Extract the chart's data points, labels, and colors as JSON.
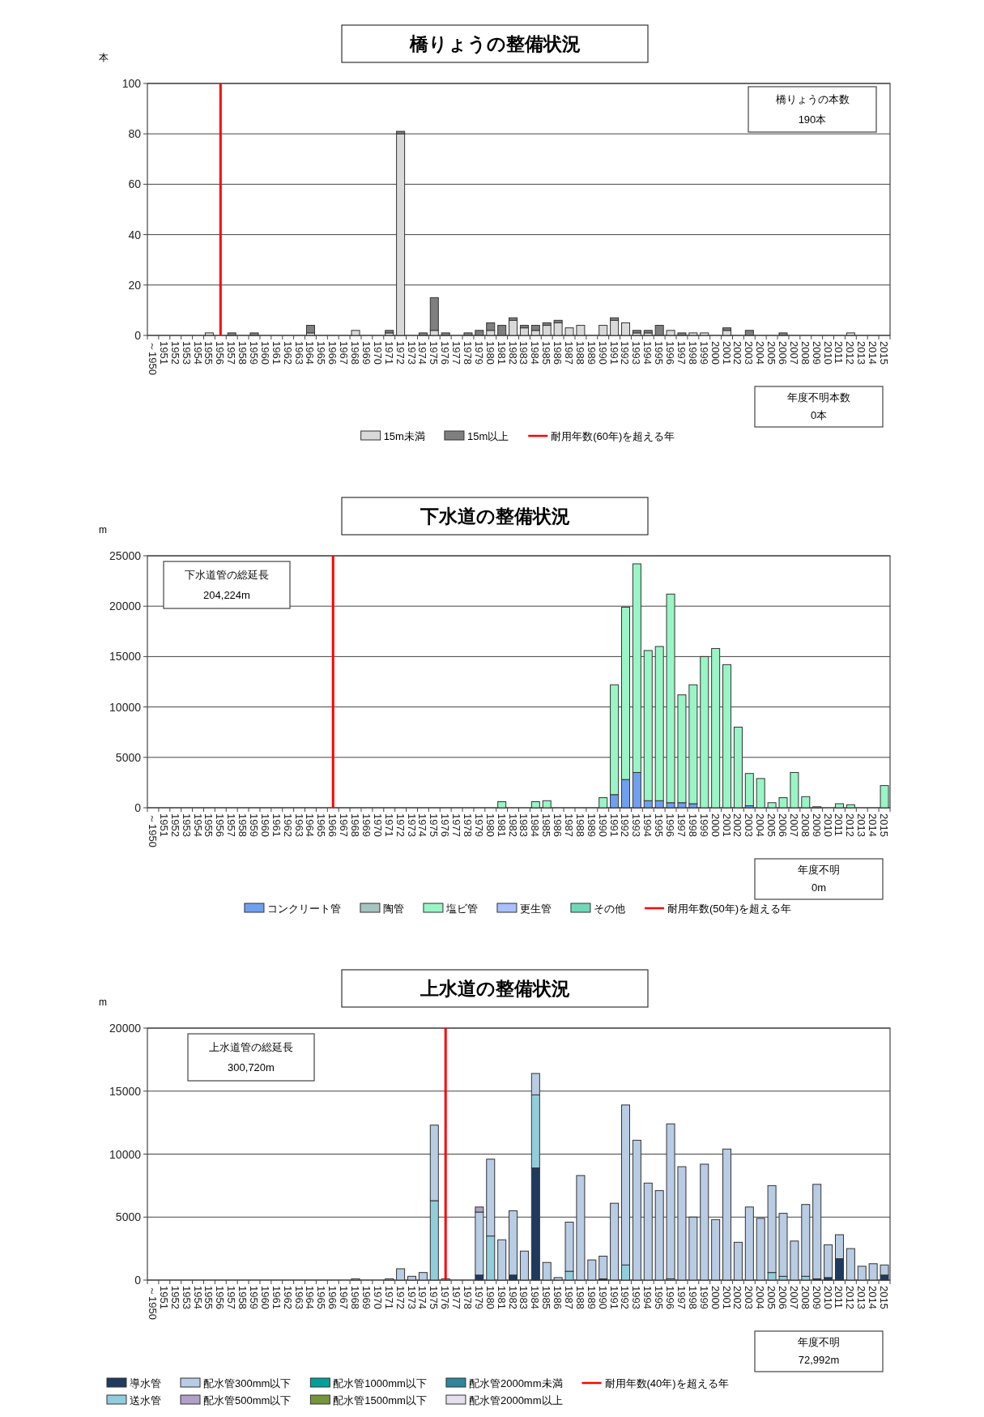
{
  "chart_data": [
    {
      "type": "bar",
      "stacked": true,
      "title": "橋りょうの整備状況",
      "ylabel": "本",
      "categories": [
        "～1950",
        "1951",
        "1952",
        "1953",
        "1954",
        "1955",
        "1956",
        "1957",
        "1958",
        "1959",
        "1960",
        "1961",
        "1962",
        "1963",
        "1964",
        "1965",
        "1966",
        "1967",
        "1968",
        "1969",
        "1970",
        "1971",
        "1972",
        "1973",
        "1974",
        "1975",
        "1976",
        "1977",
        "1978",
        "1979",
        "1980",
        "1981",
        "1982",
        "1983",
        "1984",
        "1985",
        "1986",
        "1987",
        "1988",
        "1989",
        "1990",
        "1991",
        "1992",
        "1993",
        "1994",
        "1995",
        "1996",
        "1997",
        "1998",
        "1999",
        "2000",
        "2001",
        "2002",
        "2003",
        "2004",
        "2005",
        "2006",
        "2007",
        "2008",
        "2009",
        "2010",
        "2011",
        "2012",
        "2013",
        "2014",
        "2015"
      ],
      "series": [
        {
          "name": "15m未満",
          "color": "#d9d9d9",
          "values": [
            0,
            0,
            0,
            0,
            0,
            1,
            0,
            0,
            0,
            0,
            0,
            0,
            0,
            0,
            1,
            0,
            0,
            0,
            2,
            0,
            0,
            1,
            80,
            0,
            0,
            2,
            0,
            0,
            0,
            0,
            2,
            0,
            6,
            3,
            2,
            4,
            5,
            3,
            4,
            0,
            4,
            6,
            5,
            1,
            1,
            0,
            2,
            0,
            1,
            1,
            0,
            2,
            0,
            0,
            0,
            0,
            0,
            0,
            0,
            0,
            0,
            0,
            1,
            0,
            0,
            0
          ]
        },
        {
          "name": "15m以上",
          "color": "#7f7f7f",
          "values": [
            0,
            0,
            0,
            0,
            0,
            0,
            0,
            1,
            0,
            1,
            0,
            0,
            0,
            0,
            3,
            0,
            0,
            0,
            0,
            0,
            0,
            1,
            1,
            0,
            1,
            13,
            1,
            0,
            1,
            2,
            3,
            4,
            1,
            1,
            2,
            1,
            1,
            0,
            0,
            0,
            0,
            1,
            0,
            1,
            1,
            4,
            0,
            1,
            0,
            0,
            0,
            1,
            0,
            2,
            0,
            0,
            1,
            0,
            0,
            0,
            0,
            0,
            0,
            0,
            0,
            0
          ]
        }
      ],
      "ylim": [
        0,
        100
      ],
      "yticks": [
        0,
        20,
        40,
        60,
        80,
        100
      ],
      "grid": "y",
      "legend": "bottom",
      "ref_lines": [
        {
          "axis": "x",
          "value": "1956",
          "label": "耐用年数(60年)を超える年",
          "color": "#ff0000"
        }
      ],
      "annotations": [
        "橋りょうの本数",
        "190本",
        "年度不明本数",
        "0本"
      ]
    },
    {
      "type": "bar",
      "stacked": true,
      "title": "下水道の整備状況",
      "ylabel": "m",
      "categories": [
        "～1950",
        "1951",
        "1952",
        "1953",
        "1954",
        "1955",
        "1956",
        "1957",
        "1958",
        "1959",
        "1960",
        "1961",
        "1962",
        "1963",
        "1964",
        "1965",
        "1966",
        "1967",
        "1968",
        "1969",
        "1970",
        "1971",
        "1972",
        "1973",
        "1974",
        "1975",
        "1976",
        "1977",
        "1978",
        "1979",
        "1980",
        "1981",
        "1982",
        "1983",
        "1984",
        "1985",
        "1986",
        "1987",
        "1988",
        "1989",
        "1990",
        "1991",
        "1992",
        "1993",
        "1994",
        "1995",
        "1996",
        "1997",
        "1998",
        "1999",
        "2000",
        "2001",
        "2002",
        "2003",
        "2004",
        "2005",
        "2006",
        "2007",
        "2008",
        "2009",
        "2010",
        "2011",
        "2012",
        "2013",
        "2014",
        "2015"
      ],
      "series": [
        {
          "name": "コンクリート管",
          "color": "#6fa0f0",
          "values": [
            0,
            0,
            0,
            0,
            0,
            0,
            0,
            0,
            0,
            0,
            0,
            0,
            0,
            0,
            0,
            0,
            0,
            0,
            0,
            0,
            0,
            0,
            0,
            0,
            0,
            0,
            0,
            0,
            0,
            0,
            0,
            0,
            0,
            0,
            0,
            0,
            0,
            0,
            0,
            0,
            0,
            1300,
            2800,
            3500,
            700,
            700,
            500,
            500,
            400,
            0,
            0,
            0,
            0,
            200,
            0,
            0,
            0,
            0,
            0,
            0,
            0,
            0,
            0,
            0,
            0,
            0
          ]
        },
        {
          "name": "陶管",
          "color": "#a8c4c0",
          "values": [
            0,
            0,
            0,
            0,
            0,
            0,
            0,
            0,
            0,
            0,
            0,
            0,
            0,
            0,
            0,
            0,
            0,
            0,
            0,
            0,
            0,
            0,
            0,
            0,
            0,
            0,
            0,
            0,
            0,
            0,
            0,
            0,
            0,
            0,
            0,
            0,
            0,
            0,
            0,
            0,
            0,
            0,
            0,
            0,
            0,
            0,
            0,
            0,
            0,
            0,
            0,
            0,
            0,
            0,
            0,
            0,
            0,
            0,
            0,
            0,
            0,
            0,
            0,
            0,
            0,
            0
          ]
        },
        {
          "name": "塩ビ管",
          "color": "#99f5c5",
          "values": [
            0,
            0,
            0,
            0,
            0,
            0,
            0,
            0,
            0,
            0,
            0,
            0,
            0,
            0,
            0,
            0,
            0,
            0,
            0,
            0,
            0,
            0,
            0,
            0,
            0,
            0,
            0,
            0,
            0,
            0,
            0,
            600,
            0,
            0,
            600,
            700,
            0,
            0,
            0,
            0,
            1000,
            10900,
            17100,
            20700,
            14900,
            15300,
            20700,
            10700,
            11800,
            15000,
            15800,
            14200,
            8000,
            3200,
            2900,
            500,
            1000,
            3500,
            1100,
            100,
            0,
            400,
            300,
            0,
            0,
            2200
          ]
        },
        {
          "name": "更生管",
          "color": "#a9c0ff",
          "values": [
            0,
            0,
            0,
            0,
            0,
            0,
            0,
            0,
            0,
            0,
            0,
            0,
            0,
            0,
            0,
            0,
            0,
            0,
            0,
            0,
            0,
            0,
            0,
            0,
            0,
            0,
            0,
            0,
            0,
            0,
            0,
            0,
            0,
            0,
            0,
            0,
            0,
            0,
            0,
            0,
            0,
            0,
            0,
            0,
            0,
            0,
            0,
            0,
            0,
            0,
            0,
            0,
            0,
            0,
            0,
            0,
            0,
            0,
            0,
            0,
            0,
            0,
            0,
            0,
            0,
            0
          ]
        },
        {
          "name": "その他",
          "color": "#70d8b8",
          "values": [
            0,
            0,
            0,
            0,
            0,
            0,
            0,
            0,
            0,
            0,
            0,
            0,
            0,
            0,
            0,
            0,
            0,
            0,
            0,
            0,
            0,
            0,
            0,
            0,
            0,
            0,
            0,
            0,
            0,
            0,
            0,
            0,
            0,
            0,
            0,
            0,
            0,
            0,
            0,
            0,
            0,
            0,
            0,
            0,
            0,
            0,
            0,
            0,
            0,
            0,
            0,
            0,
            0,
            0,
            0,
            0,
            0,
            0,
            0,
            0,
            0,
            0,
            0,
            0,
            0,
            0
          ]
        }
      ],
      "ylim": [
        0,
        25000
      ],
      "yticks": [
        0,
        5000,
        10000,
        15000,
        20000,
        25000
      ],
      "grid": "y",
      "legend": "bottom",
      "ref_lines": [
        {
          "axis": "x",
          "value": "1966",
          "label": "耐用年数(50年)を超える年",
          "color": "#ff0000"
        }
      ],
      "annotations": [
        "下水道管の総延長",
        "204,224m",
        "年度不明",
        "0m"
      ]
    },
    {
      "type": "bar",
      "stacked": true,
      "title": "上水道の整備状況",
      "ylabel": "m",
      "categories": [
        "～1950",
        "1951",
        "1952",
        "1953",
        "1954",
        "1955",
        "1956",
        "1957",
        "1958",
        "1959",
        "1960",
        "1961",
        "1962",
        "1963",
        "1964",
        "1965",
        "1966",
        "1967",
        "1968",
        "1969",
        "1970",
        "1971",
        "1972",
        "1973",
        "1974",
        "1975",
        "1976",
        "1977",
        "1978",
        "1979",
        "1980",
        "1981",
        "1982",
        "1983",
        "1984",
        "1985",
        "1986",
        "1987",
        "1988",
        "1989",
        "1990",
        "1991",
        "1992",
        "1993",
        "1994",
        "1995",
        "1996",
        "1997",
        "1998",
        "1999",
        "2000",
        "2001",
        "2002",
        "2003",
        "2004",
        "2005",
        "2006",
        "2007",
        "2008",
        "2009",
        "2010",
        "2011",
        "2012",
        "2013",
        "2014",
        "2015"
      ],
      "series": [
        {
          "name": "導水管",
          "color": "#1f3a5f",
          "values": [
            0,
            0,
            0,
            0,
            0,
            0,
            0,
            0,
            0,
            0,
            0,
            0,
            0,
            0,
            0,
            0,
            0,
            0,
            0,
            0,
            0,
            0,
            0,
            0,
            0,
            0,
            0,
            0,
            0,
            400,
            0,
            0,
            400,
            0,
            8900,
            0,
            0,
            0,
            0,
            0,
            100,
            0,
            0,
            0,
            0,
            0,
            0,
            0,
            0,
            0,
            0,
            0,
            0,
            0,
            0,
            0,
            0,
            0,
            0,
            100,
            200,
            1700,
            0,
            0,
            0,
            400
          ]
        },
        {
          "name": "送水管",
          "color": "#92cddc",
          "values": [
            0,
            0,
            0,
            0,
            0,
            0,
            0,
            0,
            0,
            0,
            0,
            0,
            0,
            0,
            0,
            0,
            0,
            0,
            0,
            0,
            0,
            0,
            0,
            0,
            0,
            6300,
            0,
            0,
            0,
            0,
            3500,
            0,
            0,
            0,
            5800,
            0,
            0,
            700,
            0,
            0,
            0,
            0,
            1200,
            0,
            0,
            0,
            100,
            0,
            0,
            0,
            0,
            0,
            0,
            0,
            0,
            600,
            300,
            0,
            300,
            0,
            0,
            0,
            0,
            0,
            0,
            0
          ]
        },
        {
          "name": "配水管300mm以下",
          "color": "#b8cce4",
          "values": [
            0,
            0,
            0,
            0,
            0,
            0,
            0,
            0,
            0,
            0,
            0,
            0,
            0,
            0,
            0,
            0,
            0,
            0,
            100,
            0,
            0,
            100,
            900,
            300,
            600,
            6000,
            100,
            0,
            0,
            5000,
            6100,
            3200,
            5100,
            2300,
            1700,
            1400,
            200,
            3900,
            8300,
            1600,
            1800,
            6100,
            12700,
            11100,
            7700,
            7100,
            12300,
            9000,
            5000,
            9200,
            4800,
            10400,
            3000,
            5800,
            4900,
            6900,
            5000,
            3100,
            5700,
            7500,
            2600,
            1900,
            2500,
            1100,
            1300,
            800
          ]
        },
        {
          "name": "配水管500mm以下",
          "color": "#b1a0c7",
          "values": [
            0,
            0,
            0,
            0,
            0,
            0,
            0,
            0,
            0,
            0,
            0,
            0,
            0,
            0,
            0,
            0,
            0,
            0,
            0,
            0,
            0,
            0,
            0,
            0,
            0,
            0,
            0,
            0,
            0,
            400,
            0,
            0,
            0,
            0,
            0,
            0,
            0,
            0,
            0,
            0,
            0,
            0,
            0,
            0,
            0,
            0,
            0,
            0,
            0,
            0,
            0,
            0,
            0,
            0,
            0,
            0,
            0,
            0,
            0,
            0,
            0,
            0,
            0,
            0,
            0,
            0
          ]
        },
        {
          "name": "配水管1000mm以下",
          "color": "#00a09a",
          "values": [
            0,
            0,
            0,
            0,
            0,
            0,
            0,
            0,
            0,
            0,
            0,
            0,
            0,
            0,
            0,
            0,
            0,
            0,
            0,
            0,
            0,
            0,
            0,
            0,
            0,
            0,
            0,
            0,
            0,
            0,
            0,
            0,
            0,
            0,
            0,
            0,
            0,
            0,
            0,
            0,
            0,
            0,
            0,
            0,
            0,
            0,
            0,
            0,
            0,
            0,
            0,
            0,
            0,
            0,
            0,
            0,
            0,
            0,
            0,
            0,
            0,
            0,
            0,
            0,
            0,
            0
          ]
        },
        {
          "name": "配水管1500mm以下",
          "color": "#77933c",
          "values": [
            0,
            0,
            0,
            0,
            0,
            0,
            0,
            0,
            0,
            0,
            0,
            0,
            0,
            0,
            0,
            0,
            0,
            0,
            0,
            0,
            0,
            0,
            0,
            0,
            0,
            0,
            0,
            0,
            0,
            0,
            0,
            0,
            0,
            0,
            0,
            0,
            0,
            0,
            0,
            0,
            0,
            0,
            0,
            0,
            0,
            0,
            0,
            0,
            0,
            0,
            0,
            0,
            0,
            0,
            0,
            0,
            0,
            0,
            0,
            0,
            0,
            0,
            0,
            0,
            0,
            0
          ]
        },
        {
          "name": "配水管2000mm未満",
          "color": "#31859c",
          "values": [
            0,
            0,
            0,
            0,
            0,
            0,
            0,
            0,
            0,
            0,
            0,
            0,
            0,
            0,
            0,
            0,
            0,
            0,
            0,
            0,
            0,
            0,
            0,
            0,
            0,
            0,
            0,
            0,
            0,
            0,
            0,
            0,
            0,
            0,
            0,
            0,
            0,
            0,
            0,
            0,
            0,
            0,
            0,
            0,
            0,
            0,
            0,
            0,
            0,
            0,
            0,
            0,
            0,
            0,
            0,
            0,
            0,
            0,
            0,
            0,
            0,
            0,
            0,
            0,
            0,
            0
          ]
        },
        {
          "name": "配水管2000mm以上",
          "color": "#e4dfec",
          "values": [
            0,
            0,
            0,
            0,
            0,
            0,
            0,
            0,
            0,
            0,
            0,
            0,
            0,
            0,
            0,
            0,
            0,
            0,
            0,
            0,
            0,
            0,
            0,
            0,
            0,
            0,
            0,
            0,
            0,
            0,
            0,
            0,
            0,
            0,
            0,
            0,
            0,
            0,
            0,
            0,
            0,
            0,
            0,
            0,
            0,
            0,
            0,
            0,
            0,
            0,
            0,
            0,
            0,
            0,
            0,
            0,
            0,
            0,
            0,
            0,
            0,
            0,
            0,
            0,
            0,
            0
          ]
        }
      ],
      "ylim": [
        0,
        20000
      ],
      "yticks": [
        0,
        5000,
        10000,
        15000,
        20000
      ],
      "grid": "y",
      "legend": "bottom",
      "ref_lines": [
        {
          "axis": "x",
          "value": "1976",
          "label": "耐用年数(40年)を超える年",
          "color": "#ff0000"
        }
      ],
      "annotations": [
        "上水道管の総延長",
        "300,720m",
        "年度不明",
        "72,992m"
      ]
    }
  ]
}
